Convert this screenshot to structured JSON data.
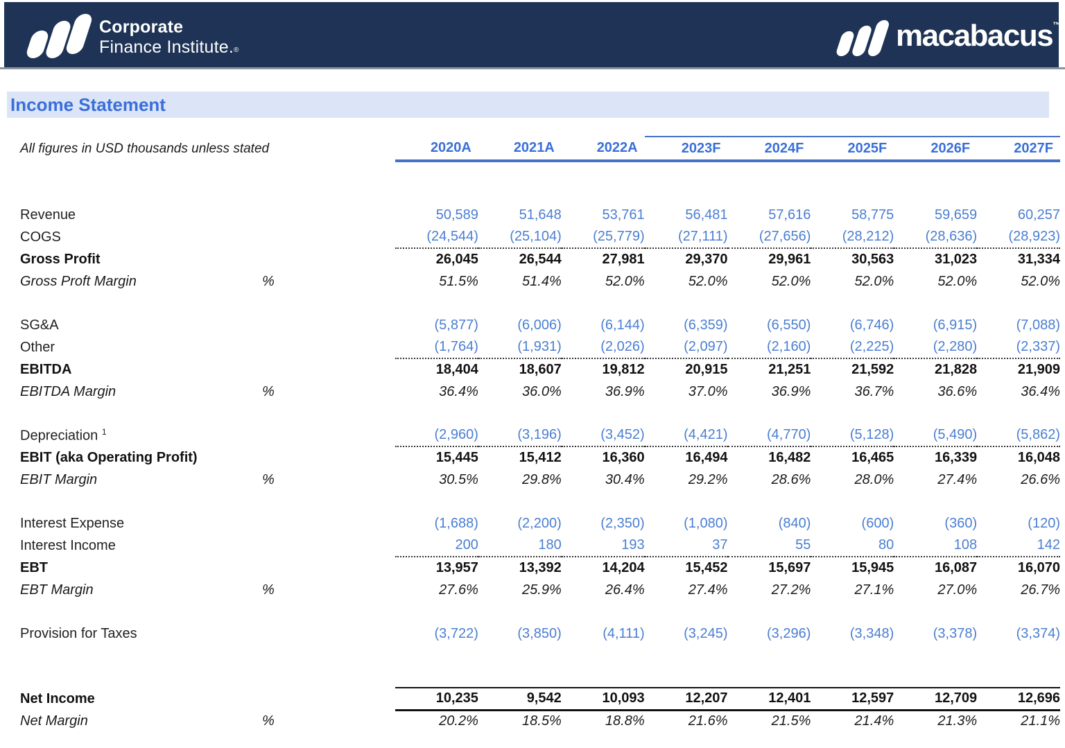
{
  "banner": {
    "cfi_logo": {
      "line1": "Corporate",
      "line2": "Finance Institute",
      "registered_mark": "®"
    },
    "macabacus_logo": {
      "label": "macabacus",
      "trademark": "™"
    },
    "bg_color": "#1e3355"
  },
  "page": {
    "title": "Income Statement",
    "subtitle": "All figures in USD thousands unless stated",
    "title_color": "#3a6fd8",
    "title_bg": "#dbe5f7"
  },
  "colors": {
    "accent_line_blue": "#4472c4",
    "input_number_blue": "#4a7ed2",
    "header_year_blue": "#3a6fd8",
    "total_black": "#111111"
  },
  "table": {
    "columns": [
      "2020A",
      "2021A",
      "2022A",
      "2023F",
      "2024F",
      "2025F",
      "2026F",
      "2027F"
    ],
    "rows": [
      {
        "label": "Revenue",
        "style": "input",
        "values": [
          "50,589",
          "51,648",
          "53,761",
          "56,481",
          "57,616",
          "58,775",
          "59,659",
          "60,257"
        ]
      },
      {
        "label": "COGS",
        "style": "input",
        "values": [
          "(24,544)",
          "(25,104)",
          "(25,779)",
          "(27,111)",
          "(27,656)",
          "(28,212)",
          "(28,636)",
          "(28,923)"
        ]
      },
      {
        "label": "Gross Profit",
        "style": "total",
        "border_top": "dotted",
        "values": [
          "26,045",
          "26,544",
          "27,981",
          "29,370",
          "29,961",
          "30,563",
          "31,023",
          "31,334"
        ]
      },
      {
        "label": "Gross Proft Margin",
        "pct": "%",
        "style": "marginrow",
        "values": [
          "51.5%",
          "51.4%",
          "52.0%",
          "52.0%",
          "52.0%",
          "52.0%",
          "52.0%",
          "52.0%"
        ]
      },
      {
        "spacer": true
      },
      {
        "label": "SG&A",
        "style": "input",
        "values": [
          "(5,877)",
          "(6,006)",
          "(6,144)",
          "(6,359)",
          "(6,550)",
          "(6,746)",
          "(6,915)",
          "(7,088)"
        ]
      },
      {
        "label": "Other",
        "style": "input",
        "values": [
          "(1,764)",
          "(1,931)",
          "(2,026)",
          "(2,097)",
          "(2,160)",
          "(2,225)",
          "(2,280)",
          "(2,337)"
        ]
      },
      {
        "label": "EBITDA",
        "style": "total",
        "border_top": "dotted",
        "values": [
          "18,404",
          "18,607",
          "19,812",
          "20,915",
          "21,251",
          "21,592",
          "21,828",
          "21,909"
        ]
      },
      {
        "label": "EBITDA Margin",
        "pct": "%",
        "style": "marginrow",
        "values": [
          "36.4%",
          "36.0%",
          "36.9%",
          "37.0%",
          "36.9%",
          "36.7%",
          "36.6%",
          "36.4%"
        ]
      },
      {
        "spacer": true
      },
      {
        "label": "Depreciation",
        "sup": "1",
        "style": "input",
        "values": [
          "(2,960)",
          "(3,196)",
          "(3,452)",
          "(4,421)",
          "(4,770)",
          "(5,128)",
          "(5,490)",
          "(5,862)"
        ]
      },
      {
        "label": "EBIT (aka Operating Profit)",
        "style": "total",
        "border_top": "dotted",
        "values": [
          "15,445",
          "15,412",
          "16,360",
          "16,494",
          "16,482",
          "16,465",
          "16,339",
          "16,048"
        ]
      },
      {
        "label": "EBIT Margin",
        "pct": "%",
        "style": "marginrow",
        "values": [
          "30.5%",
          "29.8%",
          "30.4%",
          "29.2%",
          "28.6%",
          "28.0%",
          "27.4%",
          "26.6%"
        ]
      },
      {
        "spacer": true
      },
      {
        "label": "Interest Expense",
        "style": "input",
        "values": [
          "(1,688)",
          "(2,200)",
          "(2,350)",
          "(1,080)",
          "(840)",
          "(600)",
          "(360)",
          "(120)"
        ]
      },
      {
        "label": "Interest Income",
        "style": "input",
        "values": [
          "200",
          "180",
          "193",
          "37",
          "55",
          "80",
          "108",
          "142"
        ]
      },
      {
        "label": "EBT",
        "style": "total",
        "border_top": "dotted",
        "values": [
          "13,957",
          "13,392",
          "14,204",
          "15,452",
          "15,697",
          "15,945",
          "16,087",
          "16,070"
        ]
      },
      {
        "label": "EBT Margin",
        "pct": "%",
        "style": "marginrow",
        "values": [
          "27.6%",
          "25.9%",
          "26.4%",
          "27.4%",
          "27.2%",
          "27.1%",
          "27.0%",
          "26.7%"
        ]
      },
      {
        "spacer": true
      },
      {
        "label": "Provision for Taxes",
        "style": "input",
        "values": [
          "(3,722)",
          "(3,850)",
          "(4,111)",
          "(3,245)",
          "(3,296)",
          "(3,348)",
          "(3,378)",
          "(3,374)"
        ]
      },
      {
        "spacer": true,
        "tall": true
      },
      {
        "label": "Net Income",
        "style": "total",
        "border_top": "thick",
        "border_bottom": "thick",
        "values": [
          "10,235",
          "9,542",
          "10,093",
          "12,207",
          "12,401",
          "12,597",
          "12,709",
          "12,696"
        ]
      },
      {
        "label": "Net Margin",
        "pct": "%",
        "style": "marginrow",
        "values": [
          "20.2%",
          "18.5%",
          "18.8%",
          "21.6%",
          "21.5%",
          "21.4%",
          "21.3%",
          "21.1%"
        ]
      }
    ]
  }
}
